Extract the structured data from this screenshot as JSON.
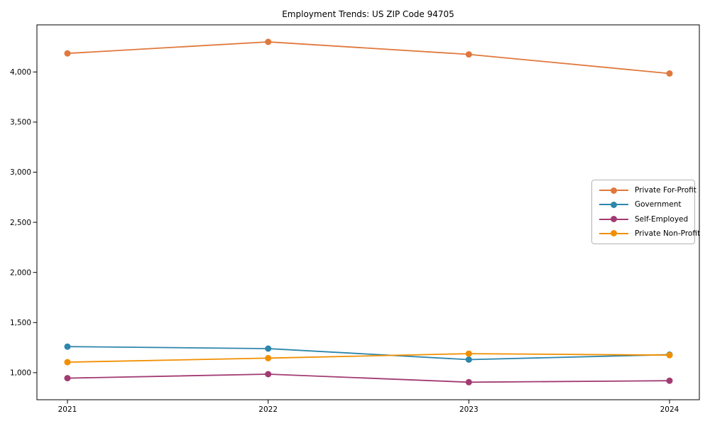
{
  "chart_data": {
    "type": "line",
    "title": "Employment Trends: US ZIP Code 94705",
    "xlabel": "",
    "ylabel": "",
    "x": [
      "2021",
      "2022",
      "2023",
      "2024"
    ],
    "series": [
      {
        "name": "Private For-Profit",
        "color": "#e0783c",
        "values": [
          4185,
          4300,
          4175,
          3985
        ]
      },
      {
        "name": "Government",
        "color": "#2e86ab",
        "values": [
          1260,
          1240,
          1130,
          1180
        ]
      },
      {
        "name": "Self-Employed",
        "color": "#a23b72",
        "values": [
          945,
          985,
          905,
          920
        ]
      },
      {
        "name": "Private Non-Profit",
        "color": "#f18f01",
        "values": [
          1105,
          1145,
          1190,
          1175
        ]
      }
    ],
    "ylim": [
      730,
      4470
    ],
    "yticks": [
      1000,
      1500,
      2000,
      2500,
      3000,
      3500,
      4000
    ],
    "ytick_labels": [
      "1,000",
      "1,500",
      "2,000",
      "2,500",
      "3,000",
      "3,500",
      "4,000"
    ],
    "xtick_labels": [
      "2021",
      "2022",
      "2023",
      "2024"
    ],
    "grid": false,
    "marker": "o",
    "legend_position": "center-right",
    "axis_color": "#000000"
  }
}
